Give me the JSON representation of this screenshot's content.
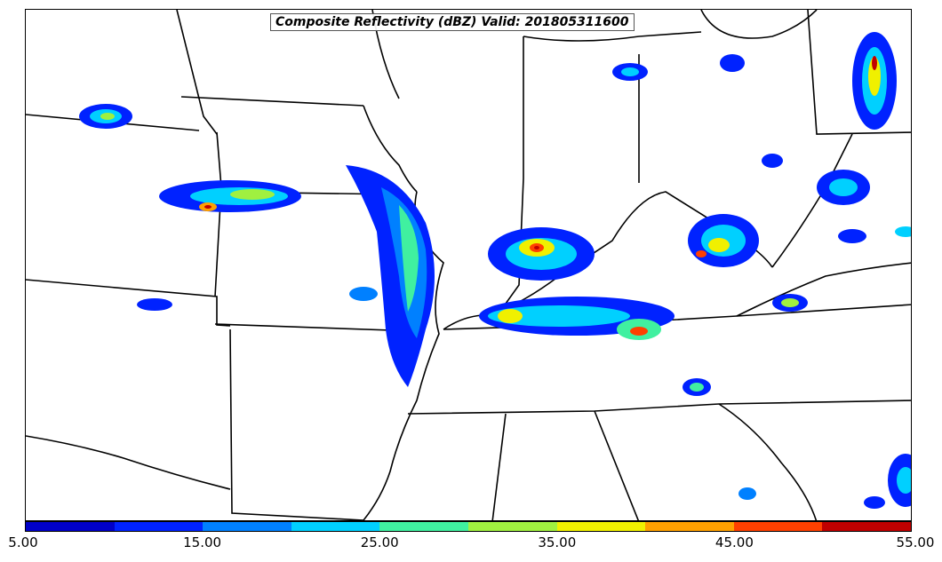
{
  "title": "Composite Reflectivity (dBZ) Valid: 201805311600",
  "colorbar": {
    "colors": [
      "#0000c8",
      "#0022ff",
      "#0080ff",
      "#00d0ff",
      "#40f0a0",
      "#a0f040",
      "#f0f000",
      "#ffa000",
      "#ff4000",
      "#c00000"
    ],
    "ticks": [
      "5.00",
      "15.00",
      "25.00",
      "35.00",
      "45.00",
      "55.00"
    ]
  },
  "icons": {
    "state-borders": "state-borders-layer",
    "reflectivity": "reflectivity-layer"
  }
}
